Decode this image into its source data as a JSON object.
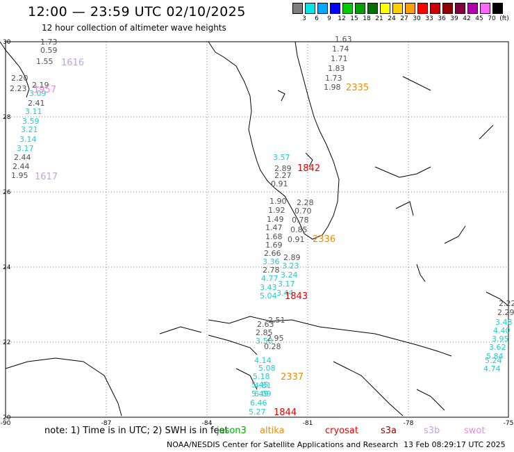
{
  "header": {
    "title": "12:00 — 23:59 UTC 02/10/2025",
    "subtitle": "12 hour collection of altimeter wave heights"
  },
  "color_scale": {
    "labels": [
      "3",
      "6",
      "9",
      "12",
      "15",
      "18",
      "21",
      "24",
      "27",
      "30",
      "33",
      "36",
      "39",
      "42",
      "45",
      "70",
      "(ft)"
    ],
    "colors": [
      "#7f7f7f",
      "#00e5e5",
      "#00aaff",
      "#0000ff",
      "#00cc00",
      "#00a000",
      "#007000",
      "#ffff00",
      "#ffd000",
      "#ffa000",
      "#ff0000",
      "#cc0000",
      "#900000",
      "#800040",
      "#b000b0",
      "#ff66ff",
      "#000000"
    ]
  },
  "map": {
    "lon_labels": [
      "-90",
      "-87",
      "-84",
      "-81",
      "-78",
      "-75"
    ],
    "lat_labels": [
      "30",
      "28",
      "26",
      "24",
      "22",
      "20"
    ],
    "track_labels": [
      {
        "text": "1616",
        "color": "#b8a6e0"
      },
      {
        "text": "1957",
        "color": "#ee88dd"
      },
      {
        "text": "1617",
        "color": "#b8a6e0"
      },
      {
        "text": "1842",
        "color": "#ee0000"
      },
      {
        "text": "2335",
        "color": "#f08c00"
      },
      {
        "text": "2336",
        "color": "#f08c00"
      },
      {
        "text": "1843",
        "color": "#ee0000"
      },
      {
        "text": "2337",
        "color": "#f08c00"
      },
      {
        "text": "1844",
        "color": "#ee0000"
      }
    ],
    "wave_values": {
      "nw_track": [
        "1.73",
        "0.59",
        "1.55",
        "2.20",
        "2.23",
        "2.19",
        "2.41",
        "3.09",
        "3.11",
        "3.59",
        "3.21",
        "3.14",
        "3.17",
        "2.44",
        "2.44",
        "1.95"
      ],
      "atlantic_track": [
        "1.63",
        "1.74",
        "1.71",
        "1.83",
        "1.73",
        "1.98"
      ],
      "keys_track": [
        "3.57",
        "2.89",
        "2.27",
        "0.91",
        "1.90",
        "1.92",
        "1.49",
        "1.47",
        "1.68",
        "1.69",
        "2.28",
        "0.70",
        "0.78",
        "0.85",
        "0.91",
        "2.66",
        "3.36",
        "2.78",
        "4.77",
        "3.43",
        "5.04",
        "3.44",
        "2.89",
        "3.23",
        "3.24",
        "3.17"
      ],
      "cuba_track": [
        "2.51",
        "2.63",
        "2.85",
        "3.50",
        "2.95",
        "0.28",
        "4.14",
        "5.08",
        "5.18",
        "5.45",
        "4.81",
        "5.49",
        "6.09",
        "6.46",
        "5.27"
      ],
      "east_track": [
        "2.22",
        "2.29",
        "3.48",
        "4.40",
        "3.95",
        "3.62",
        "5.84",
        "5.24",
        "4.74"
      ]
    }
  },
  "footer": {
    "note": "note:  1) Time is in UTC;  2) SWH is in feet",
    "legend": [
      {
        "name": "jason3",
        "color": "#00aa00"
      },
      {
        "name": "altika",
        "color": "#f08c00"
      },
      {
        "name": "cryosat",
        "color": "#ee0000"
      },
      {
        "name": "s3a",
        "color": "#990000"
      },
      {
        "name": "s3b",
        "color": "#b8a6e0"
      },
      {
        "name": "swot",
        "color": "#ee88dd"
      }
    ],
    "credit": "NOAA/NESDIS Center for Satellite Applications and Research",
    "timestamp": "13 Feb 08:29:17 UTC 2025"
  }
}
